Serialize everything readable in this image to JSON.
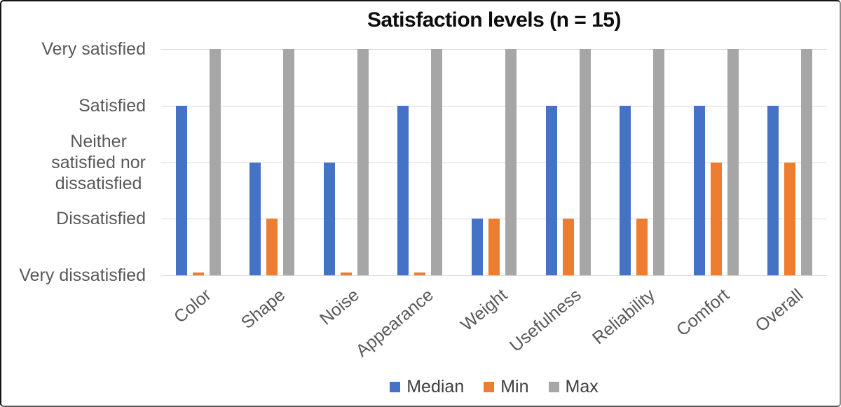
{
  "chart_data": {
    "type": "bar",
    "title": "Satisfaction levels (n = 15)",
    "categories": [
      "Color",
      "Shape",
      "Noise",
      "Appearance",
      "Weight",
      "Usefulness",
      "Reliability",
      "Comfort",
      "Overall"
    ],
    "series": [
      {
        "name": "Median",
        "color": "#4472C4",
        "values": [
          4,
          3,
          3,
          4,
          2,
          4,
          4,
          4,
          4
        ]
      },
      {
        "name": "Min",
        "color": "#ED7D31",
        "values": [
          1,
          2,
          1,
          1,
          2,
          2,
          2,
          3,
          3
        ]
      },
      {
        "name": "Max",
        "color": "#A6A6A6",
        "values": [
          5,
          5,
          5,
          5,
          5,
          5,
          5,
          5,
          5
        ]
      }
    ],
    "value_scale": {
      "1": "Very dissatisfied",
      "2": "Dissatisfied",
      "3": "Neither satisfied nor dissatisfied",
      "4": "Satisfied",
      "5": "Very satisfied"
    },
    "y_ticks": [
      {
        "value": 5,
        "label": "Very satisfied",
        "lines": [
          "Very satisfied"
        ]
      },
      {
        "value": 4,
        "label": "Satisfied",
        "lines": [
          "Satisfied"
        ]
      },
      {
        "value": 3,
        "label": "Neither satisfied nor dissatisfied",
        "lines": [
          "Neither",
          "satisfied nor",
          "dissatisfied"
        ]
      },
      {
        "value": 2,
        "label": "Dissatisfied",
        "lines": [
          "Dissatisfied"
        ]
      },
      {
        "value": 1,
        "label": "Very dissatisfied",
        "lines": [
          "Very dissatisfied"
        ]
      }
    ],
    "ylim": [
      1,
      5
    ],
    "grid": "horizontal",
    "legend_position": "bottom",
    "legend_entries": [
      "Median",
      "Min",
      "Max"
    ],
    "style": {
      "grid_color": "#D9D9D9",
      "axis_text_color": "#595959",
      "title_color": "#0D0D0D",
      "legend_text_color": "#404040"
    }
  }
}
